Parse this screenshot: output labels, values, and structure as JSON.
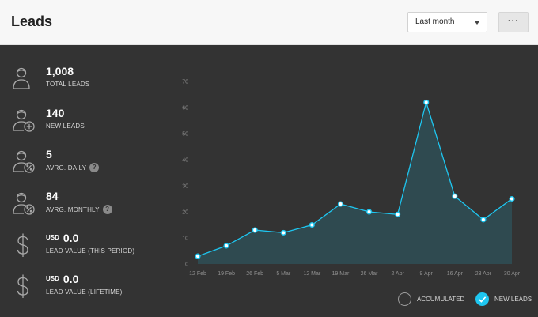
{
  "header": {
    "title": "Leads",
    "period_select": {
      "value": "Last month"
    },
    "more_button": "···"
  },
  "stats": [
    {
      "icon": "user-icon",
      "value": "1,008",
      "label": "TOTAL LEADS"
    },
    {
      "icon": "user-add-icon",
      "value": "140",
      "label": "NEW LEADS"
    },
    {
      "icon": "user-percent-icon",
      "value": "5",
      "label": "AVRG. DAILY",
      "help": "?"
    },
    {
      "icon": "user-percent-icon",
      "value": "84",
      "label": "AVRG. MONTHLY",
      "help": "?"
    },
    {
      "icon": "dollar-icon",
      "currency": "USD",
      "value": "0.0",
      "label": "LEAD VALUE (THIS PERIOD)"
    },
    {
      "icon": "dollar-icon",
      "currency": "USD",
      "value": "0.0",
      "label": "LEAD VALUE (LIFETIME)"
    }
  ],
  "legend": {
    "accumulated": {
      "label": "ACCUMULATED",
      "checked": false
    },
    "new_leads": {
      "label": "NEW LEADS",
      "checked": true
    }
  },
  "colors": {
    "accent": "#1ec6f0",
    "area_fill": "#2f4a50",
    "background": "#333333",
    "header_bg": "#f7f7f7"
  },
  "chart_data": {
    "type": "area",
    "x": [
      "12 Feb",
      "19 Feb",
      "26 Feb",
      "5 Mar",
      "12 Mar",
      "19 Mar",
      "26 Mar",
      "2 Apr",
      "9 Apr",
      "16 Apr",
      "23 Apr",
      "30 Apr"
    ],
    "series": [
      {
        "name": "NEW LEADS",
        "values": [
          3,
          7,
          13,
          12,
          15,
          23,
          20,
          19,
          62,
          26,
          17,
          25
        ]
      }
    ],
    "ylim": [
      0,
      70
    ],
    "yticks": [
      0,
      10,
      20,
      30,
      40,
      50,
      60,
      70
    ],
    "grid": false,
    "legend": "bottom-right"
  }
}
